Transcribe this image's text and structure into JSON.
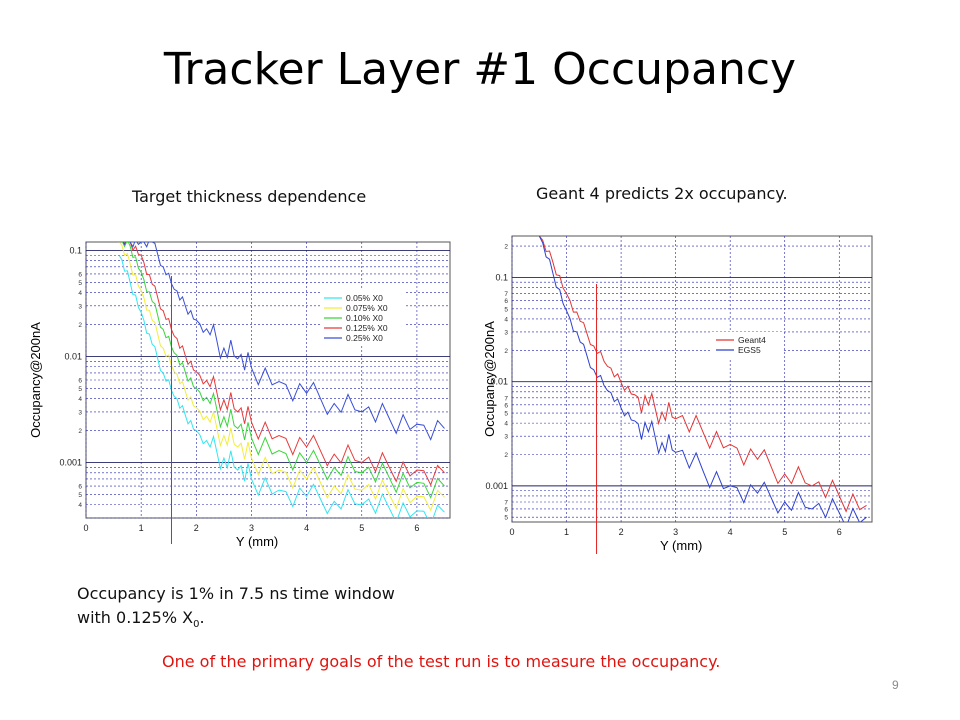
{
  "slide": {
    "title": "Tracker Layer #1 Occupancy",
    "left_subtitle": "Target thickness dependence",
    "right_subtitle": "Geant 4 predicts 2x occupancy.",
    "note_line1": "Occupancy is 1% in 7.5 ns time window",
    "note_line2_prefix": "with 0.125% X",
    "note_line2_sub": "0",
    "note_line2_suffix": ".",
    "goal_text": "One of the primary goals of the test run is to measure the occupancy.",
    "page_number": "9"
  },
  "colors": {
    "goal_text": "#e0140f",
    "marker_line": "#e02020"
  },
  "chart_data": [
    {
      "type": "line",
      "yscale": "log",
      "xlabel": "Y (mm)",
      "ylabel": "Occupancy@200nA",
      "xlim": [
        0,
        6.6
      ],
      "ylim": [
        0.0003,
        0.12
      ],
      "x_ticks": [
        "0",
        "1",
        "2",
        "3",
        "4",
        "5",
        "6"
      ],
      "y_major_ticks": [
        "0.1",
        "0.01",
        "0.001"
      ],
      "y_minor_ticks": [
        "6",
        "5",
        "4",
        "3",
        "2",
        "6",
        "5",
        "4",
        "3",
        "2",
        "6",
        "5",
        "4"
      ],
      "grid": true,
      "legend_position": "top-right",
      "vertical_marker_x": 1.55,
      "x": [
        0.6,
        0.8,
        1.0,
        1.2,
        1.4,
        1.6,
        1.8,
        2.0,
        2.25,
        2.5,
        2.75,
        3.0,
        3.5,
        4.0,
        4.5,
        5.0,
        5.5,
        6.0,
        6.5
      ],
      "series": [
        {
          "name": "0.05%  X0",
          "color": "#33e6f0",
          "values": [
            0.09,
            0.05,
            0.026,
            0.013,
            0.007,
            0.0042,
            0.0028,
            0.002,
            0.0014,
            0.0011,
            0.00085,
            0.0007,
            0.00055,
            0.00048,
            0.00043,
            0.0004,
            0.00037,
            0.00035,
            0.00034
          ]
        },
        {
          "name": "0.075%  X0",
          "color": "#f2ee3a",
          "values": [
            0.12,
            0.075,
            0.042,
            0.022,
            0.012,
            0.0072,
            0.0047,
            0.0033,
            0.0024,
            0.0018,
            0.0014,
            0.0011,
            0.00085,
            0.0007,
            0.0006,
            0.00055,
            0.0005,
            0.00048,
            0.00047
          ]
        },
        {
          "name": "0.10%  X0",
          "color": "#39d639",
          "values": [
            0.12,
            0.11,
            0.062,
            0.033,
            0.018,
            0.0108,
            0.0071,
            0.005,
            0.0036,
            0.0027,
            0.0021,
            0.0017,
            0.0013,
            0.001,
            0.0009,
            0.0008,
            0.00072,
            0.00065,
            0.0006
          ]
        },
        {
          "name": "0.125%  X0",
          "color": "#e83a3a",
          "values": [
            0.12,
            0.12,
            0.09,
            0.048,
            0.027,
            0.0156,
            0.0102,
            0.0072,
            0.0052,
            0.0039,
            0.003,
            0.0024,
            0.0018,
            0.0014,
            0.0012,
            0.001,
            0.0009,
            0.00085,
            0.0008
          ]
        },
        {
          "name": "0.25%  X0",
          "color": "#3a4fd6",
          "values": [
            0.12,
            0.12,
            0.12,
            0.12,
            0.07,
            0.043,
            0.03,
            0.022,
            0.016,
            0.012,
            0.0095,
            0.0078,
            0.0058,
            0.0045,
            0.0036,
            0.003,
            0.0026,
            0.0023,
            0.0021
          ]
        }
      ]
    },
    {
      "type": "line",
      "yscale": "log",
      "xlabel": "Y (mm)",
      "ylabel": "Occupancy@200nA",
      "xlim": [
        0,
        6.6
      ],
      "ylim": [
        0.00045,
        0.25
      ],
      "x_ticks": [
        "0",
        "1",
        "2",
        "3",
        "4",
        "5",
        "6"
      ],
      "y_major_ticks": [
        "0.1",
        "0.01",
        "0.001"
      ],
      "y_minor_ticks": [
        "2",
        "7",
        "6",
        "5",
        "4",
        "3",
        "2",
        "7",
        "6",
        "5",
        "4",
        "3",
        "2",
        "7",
        "6",
        "5"
      ],
      "grid": true,
      "legend_position": "middle-right",
      "vertical_marker_x": 1.55,
      "x": [
        0.5,
        0.75,
        1.0,
        1.25,
        1.5,
        1.75,
        2.0,
        2.25,
        2.5,
        2.75,
        3.0,
        3.5,
        4.0,
        4.5,
        5.0,
        5.5,
        6.0,
        6.5
      ],
      "series": [
        {
          "name": "Geant4",
          "color": "#e23535",
          "values": [
            0.25,
            0.14,
            0.07,
            0.038,
            0.022,
            0.014,
            0.0098,
            0.0075,
            0.006,
            0.0051,
            0.0044,
            0.0033,
            0.0025,
            0.0018,
            0.0013,
            0.001,
            0.0008,
            0.00065
          ]
        },
        {
          "name": "EGS5",
          "color": "#2f42cc",
          "values": [
            0.25,
            0.11,
            0.048,
            0.024,
            0.013,
            0.0082,
            0.0056,
            0.0042,
            0.0033,
            0.0026,
            0.0021,
            0.0014,
            0.001,
            0.00085,
            0.0007,
            0.0006,
            0.00055,
            0.0005
          ]
        }
      ]
    }
  ]
}
